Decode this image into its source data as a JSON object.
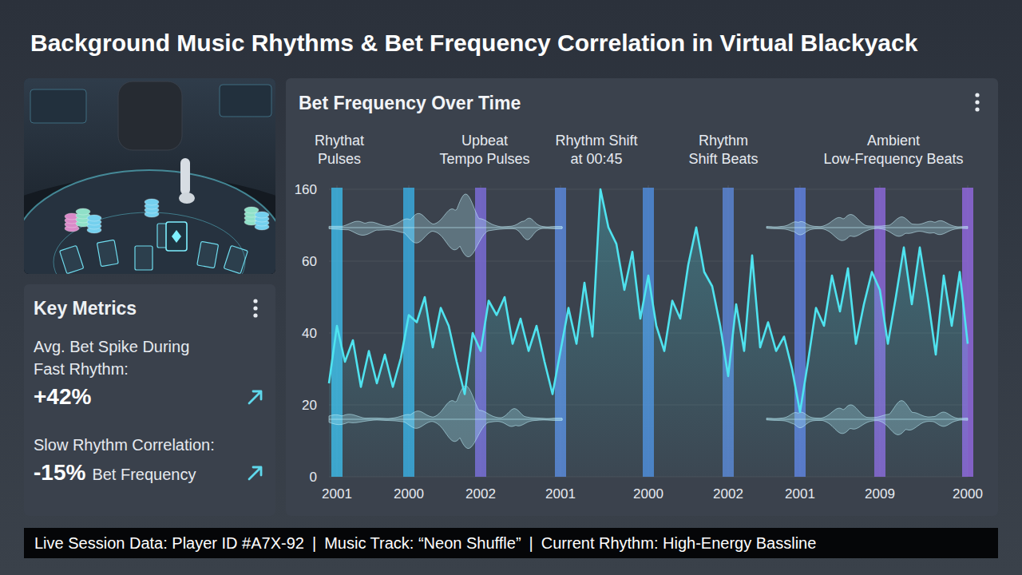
{
  "title": "Background Music Rhythms & Bet Frequency Correlation in Virtual Blackyack",
  "metrics_panel": {
    "title": "Key Metrics",
    "metrics": [
      {
        "label": "Avg. Bet Spike During Fast Rhythm:",
        "value": "+42%"
      },
      {
        "label": "Slow Rhythm Correlation:",
        "value": "-15%",
        "value_note": "Bet Frequency"
      }
    ]
  },
  "chart_data": {
    "type": "line",
    "title": "Bet Frequency Over Time",
    "annotations": [
      "Rhythat Pulses",
      "Upbeat Tempo Pulses",
      "Rhythm Shift at 00:45",
      "Rhythm Shift Beats",
      "Ambient Low-Frequency Beats"
    ],
    "categories": [
      null,
      "2001",
      null,
      null,
      null,
      null,
      null,
      null,
      null,
      null,
      "2000",
      null,
      null,
      null,
      null,
      null,
      null,
      null,
      null,
      "2002",
      null,
      null,
      null,
      null,
      null,
      null,
      null,
      null,
      null,
      "2001",
      null,
      null,
      null,
      null,
      null,
      null,
      null,
      null,
      null,
      null,
      "2000",
      null,
      null,
      null,
      null,
      null,
      null,
      null,
      null,
      null,
      "2002",
      null,
      null,
      null,
      null,
      null,
      null,
      null,
      null,
      "2001",
      null,
      null,
      null,
      null,
      null,
      null,
      null,
      null,
      null,
      "2009",
      null,
      null,
      null,
      null,
      null,
      null,
      null,
      null,
      null,
      null,
      "2000"
    ],
    "values": [
      26,
      42,
      32,
      38,
      25,
      35,
      26,
      34,
      25,
      33,
      45,
      43,
      50,
      36,
      47,
      42,
      32,
      23,
      40,
      35,
      49,
      45,
      50,
      37,
      44,
      35,
      42,
      32,
      23,
      35,
      47,
      37,
      54,
      39,
      160,
      107,
      84,
      52,
      73,
      44,
      56,
      42,
      35,
      49,
      44,
      59,
      107,
      57,
      53,
      42,
      28,
      48,
      35,
      68,
      36,
      43,
      35,
      39,
      30,
      18,
      32,
      47,
      42,
      56,
      46,
      58,
      37,
      48,
      57,
      52,
      37,
      50,
      79,
      48,
      79,
      50,
      34,
      56,
      42,
      57,
      37
    ],
    "color": "#4fe3ef",
    "ylim": [
      0,
      160
    ],
    "yticks": [
      0,
      20,
      40,
      60,
      160
    ],
    "grid": true
  },
  "footer": {
    "items": [
      "Live Session Data: Player ID #A7X-92",
      "Music Track: “Neon Shuffle”",
      "Current Rhythm: High-Energy Bassline"
    ],
    "separator": "|"
  }
}
